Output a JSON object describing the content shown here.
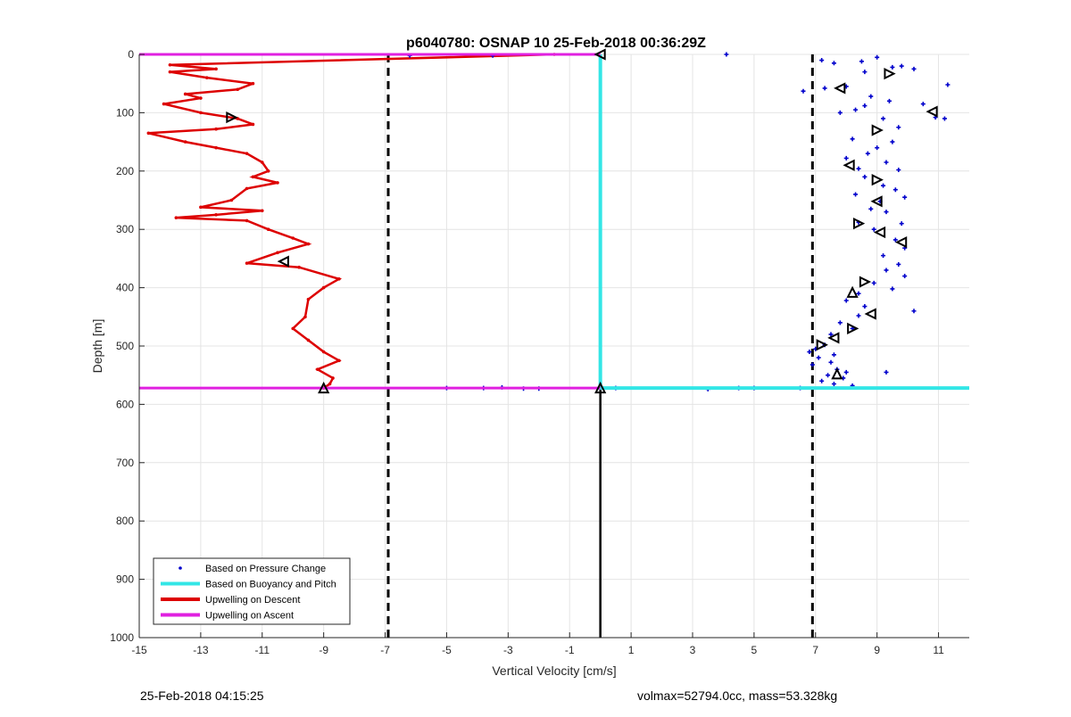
{
  "chart_data": {
    "type": "scatter",
    "title": "p6040780: OSNAP 10 25-Feb-2018 00:36:29Z",
    "xlabel": "Vertical Velocity [cm/s]",
    "ylabel": "Depth [m]",
    "xlim": [
      -15,
      12
    ],
    "ylim": [
      0,
      1000
    ],
    "y_reversed": true,
    "grid": true,
    "xticks": [
      -15,
      -13,
      -11,
      -9,
      -7,
      -5,
      -3,
      -1,
      1,
      3,
      5,
      7,
      9,
      11
    ],
    "yticks": [
      0,
      100,
      200,
      300,
      400,
      500,
      600,
      700,
      800,
      900,
      1000
    ],
    "legend_position": "bottom-left",
    "legend": [
      {
        "label": "Based on Pressure Change",
        "style": "dots",
        "color": "#0000cc"
      },
      {
        "label": "Based on Buoyancy and Pitch",
        "style": "line",
        "color": "#33e6e6"
      },
      {
        "label": "Upwelling on Descent",
        "style": "line",
        "color": "#dd0000"
      },
      {
        "label": "Upwelling on Ascent",
        "style": "line",
        "color": "#e020e0"
      }
    ],
    "reference_lines": {
      "dashed_vertical_x": [
        -6.9,
        6.9
      ],
      "solid_black_vertical": {
        "x": 0,
        "from_depth": 572,
        "to_depth": 1000
      },
      "ascent_horizontal_depths": [
        0,
        572
      ],
      "buoyancy_vertical": {
        "x": 0,
        "from_depth": 0,
        "to_depth": 572
      },
      "buoyancy_horizontal": {
        "depth": 572,
        "from_x": 0,
        "to_x": 12
      }
    },
    "series": [
      {
        "name": "Upwelling on Descent",
        "color": "#dd0000",
        "points": [
          [
            -1.5,
            0
          ],
          [
            -14.0,
            18
          ],
          [
            -12.5,
            25
          ],
          [
            -14.0,
            30
          ],
          [
            -12.8,
            40
          ],
          [
            -11.3,
            50
          ],
          [
            -11.8,
            60
          ],
          [
            -13.5,
            68
          ],
          [
            -13.0,
            75
          ],
          [
            -14.2,
            85
          ],
          [
            -13.0,
            100
          ],
          [
            -11.8,
            110
          ],
          [
            -11.3,
            120
          ],
          [
            -12.5,
            128
          ],
          [
            -14.7,
            135
          ],
          [
            -13.5,
            150
          ],
          [
            -12.5,
            160
          ],
          [
            -11.5,
            170
          ],
          [
            -11.0,
            185
          ],
          [
            -10.8,
            200
          ],
          [
            -11.3,
            210
          ],
          [
            -10.5,
            220
          ],
          [
            -11.5,
            230
          ],
          [
            -12.0,
            250
          ],
          [
            -13.0,
            262
          ],
          [
            -11.0,
            268
          ],
          [
            -12.5,
            275
          ],
          [
            -13.8,
            280
          ],
          [
            -11.5,
            285
          ],
          [
            -10.8,
            300
          ],
          [
            -10.0,
            315
          ],
          [
            -9.5,
            325
          ],
          [
            -10.5,
            340
          ],
          [
            -11.5,
            358
          ],
          [
            -9.8,
            365
          ],
          [
            -8.5,
            385
          ],
          [
            -9.0,
            400
          ],
          [
            -9.5,
            420
          ],
          [
            -9.6,
            450
          ],
          [
            -10.0,
            470
          ],
          [
            -9.5,
            490
          ],
          [
            -9.0,
            510
          ],
          [
            -8.5,
            525
          ],
          [
            -9.2,
            540
          ],
          [
            -8.7,
            555
          ],
          [
            -8.8,
            565
          ],
          [
            -9.0,
            572
          ]
        ]
      },
      {
        "name": "Based on Pressure Change",
        "color": "#0000cc",
        "points": [
          [
            -6.2,
            2
          ],
          [
            -3.5,
            2
          ],
          [
            4.1,
            0
          ],
          [
            -5.0,
            572
          ],
          [
            -3.8,
            572
          ],
          [
            -3.2,
            571
          ],
          [
            -2.5,
            573
          ],
          [
            -2.0,
            573
          ],
          [
            0.5,
            572
          ],
          [
            3.5,
            574
          ],
          [
            4.5,
            572
          ],
          [
            5.0,
            572
          ],
          [
            6.5,
            572
          ],
          [
            7.2,
            10
          ],
          [
            7.6,
            15
          ],
          [
            8.5,
            12
          ],
          [
            9.0,
            5
          ],
          [
            9.5,
            22
          ],
          [
            10.2,
            25
          ],
          [
            8.6,
            30
          ],
          [
            9.8,
            20
          ],
          [
            6.6,
            63
          ],
          [
            7.3,
            58
          ],
          [
            8.0,
            55
          ],
          [
            8.8,
            72
          ],
          [
            10.5,
            85
          ],
          [
            11.3,
            52
          ],
          [
            9.4,
            80
          ],
          [
            7.8,
            100
          ],
          [
            8.3,
            95
          ],
          [
            8.6,
            88
          ],
          [
            9.2,
            110
          ],
          [
            10.9,
            108
          ],
          [
            11.2,
            110
          ],
          [
            9.7,
            125
          ],
          [
            8.2,
            145
          ],
          [
            9.5,
            150
          ],
          [
            9.0,
            160
          ],
          [
            8.7,
            170
          ],
          [
            8.0,
            178
          ],
          [
            9.3,
            185
          ],
          [
            8.4,
            196
          ],
          [
            9.7,
            198
          ],
          [
            8.6,
            210
          ],
          [
            9.2,
            225
          ],
          [
            9.6,
            232
          ],
          [
            8.3,
            240
          ],
          [
            9.1,
            252
          ],
          [
            9.9,
            245
          ],
          [
            8.8,
            265
          ],
          [
            9.3,
            270
          ],
          [
            8.4,
            288
          ],
          [
            9.8,
            290
          ],
          [
            8.9,
            300
          ],
          [
            9.6,
            318
          ],
          [
            9.9,
            332
          ],
          [
            9.2,
            345
          ],
          [
            9.7,
            360
          ],
          [
            9.3,
            370
          ],
          [
            9.9,
            380
          ],
          [
            8.9,
            392
          ],
          [
            9.5,
            402
          ],
          [
            8.4,
            410
          ],
          [
            8.0,
            422
          ],
          [
            8.6,
            432
          ],
          [
            10.2,
            440
          ],
          [
            8.4,
            448
          ],
          [
            7.8,
            460
          ],
          [
            8.2,
            470
          ],
          [
            7.5,
            480
          ],
          [
            7.3,
            498
          ],
          [
            7.0,
            505
          ],
          [
            6.8,
            510
          ],
          [
            7.6,
            515
          ],
          [
            7.1,
            520
          ],
          [
            7.5,
            528
          ],
          [
            6.9,
            532
          ],
          [
            7.7,
            540
          ],
          [
            8.0,
            545
          ],
          [
            9.3,
            545
          ],
          [
            7.4,
            550
          ],
          [
            7.9,
            555
          ],
          [
            7.2,
            560
          ],
          [
            7.6,
            565
          ],
          [
            8.2,
            568
          ]
        ]
      },
      {
        "name": "Based on Buoyancy and Pitch",
        "color": "#33e6e6",
        "points": [
          [
            0,
            0
          ],
          [
            0,
            572
          ],
          [
            12,
            572
          ]
        ]
      },
      {
        "name": "Upwelling on Ascent",
        "color": "#e020e0",
        "points": [
          [
            -15,
            0
          ],
          [
            0,
            0
          ],
          [
            -15,
            572
          ],
          [
            0,
            572
          ]
        ]
      }
    ],
    "markers": {
      "style": "triangle",
      "color": "#000000",
      "points": [
        {
          "x": 0.0,
          "y": 0,
          "dir": "left"
        },
        {
          "x": 0.0,
          "y": 572,
          "dir": "up"
        },
        {
          "x": -9.0,
          "y": 572,
          "dir": "up"
        },
        {
          "x": -12.0,
          "y": 108,
          "dir": "right"
        },
        {
          "x": -10.3,
          "y": 355,
          "dir": "left"
        },
        {
          "x": 9.4,
          "y": 33,
          "dir": "right"
        },
        {
          "x": 7.8,
          "y": 58,
          "dir": "left"
        },
        {
          "x": 10.8,
          "y": 98,
          "dir": "left"
        },
        {
          "x": 9.0,
          "y": 130,
          "dir": "right"
        },
        {
          "x": 8.1,
          "y": 190,
          "dir": "left"
        },
        {
          "x": 9.0,
          "y": 215,
          "dir": "right"
        },
        {
          "x": 9.0,
          "y": 252,
          "dir": "left"
        },
        {
          "x": 8.4,
          "y": 290,
          "dir": "right"
        },
        {
          "x": 9.1,
          "y": 305,
          "dir": "left"
        },
        {
          "x": 9.8,
          "y": 322,
          "dir": "left"
        },
        {
          "x": 8.6,
          "y": 390,
          "dir": "right"
        },
        {
          "x": 8.2,
          "y": 408,
          "dir": "up"
        },
        {
          "x": 8.8,
          "y": 445,
          "dir": "left"
        },
        {
          "x": 8.2,
          "y": 470,
          "dir": "right"
        },
        {
          "x": 7.6,
          "y": 486,
          "dir": "left"
        },
        {
          "x": 7.2,
          "y": 498,
          "dir": "right"
        },
        {
          "x": 7.7,
          "y": 548,
          "dir": "up"
        }
      ]
    }
  },
  "footer": {
    "timestamp": "25-Feb-2018 04:15:25",
    "summary": "volmax=52794.0cc, mass=53.328kg"
  }
}
